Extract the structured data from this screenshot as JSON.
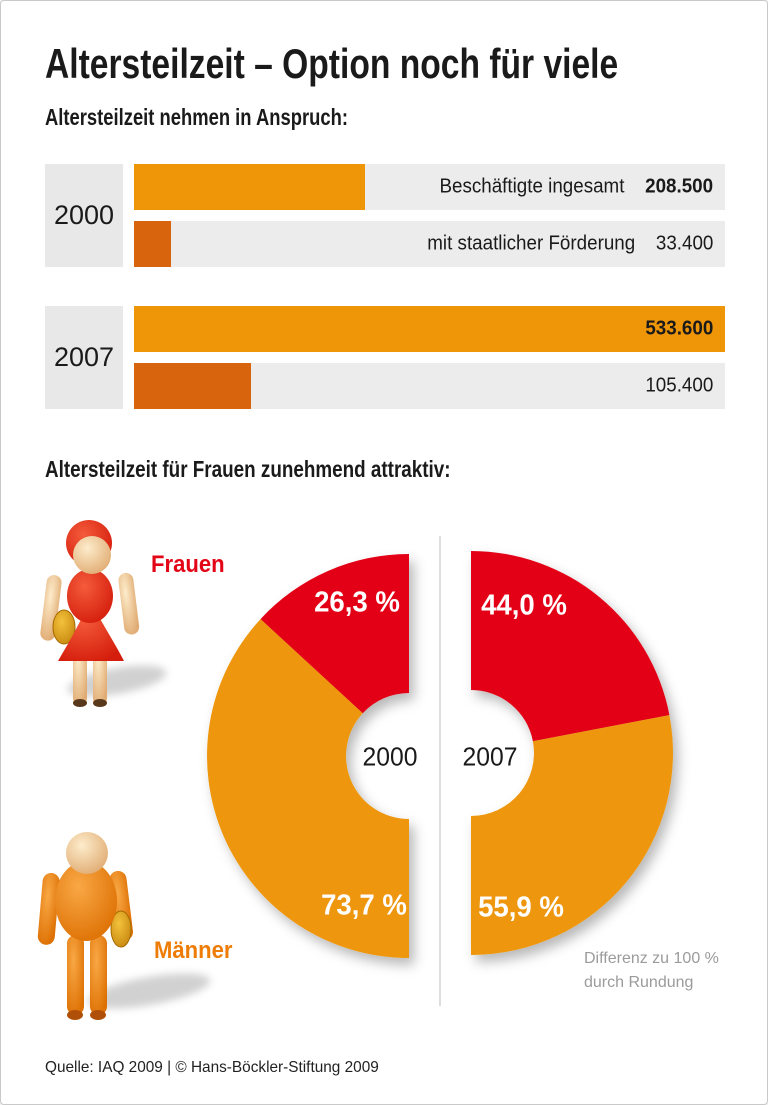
{
  "page": {
    "title": "Altersteilzeit – Option noch für viele",
    "source_line": "Quelle: IAQ 2009 | © Hans-Böckler-Stiftung 2009"
  },
  "theme": {
    "orange": "#ee9608",
    "dark_orange": "#d8650d",
    "red": "#e30617",
    "track_gray": "#ececec",
    "year_box_gray": "#e8e8e8",
    "footnote_gray": "#9b9b9b"
  },
  "bar_section": {
    "heading": "Altersteilzeit nehmen in Anspruch:",
    "groups": [
      {
        "year": "2000",
        "bars": [
          {
            "label": "Beschäftigte ingesamt",
            "value": "208.500"
          },
          {
            "label": "mit staatlicher Förderung",
            "value": "33.400"
          }
        ]
      },
      {
        "year": "2007",
        "bars": [
          {
            "label": "",
            "value": "533.600"
          },
          {
            "label": "",
            "value": "105.400"
          }
        ]
      }
    ]
  },
  "donut_section": {
    "heading": "Altersteilzeit für Frauen zunehmend attraktiv:",
    "legend": [
      {
        "label": "Frauen",
        "color": "#e30617"
      },
      {
        "label": "Männer",
        "color": "#ee9608"
      }
    ],
    "charts": [
      {
        "year": "2000",
        "frauen_pct": "26,3 %",
        "maenner_pct": "73,7 %"
      },
      {
        "year": "2007",
        "frauen_pct": "44,0 %",
        "maenner_pct": "55,9 %"
      }
    ],
    "footnote": "Differenz zu 100 % durch Rundung"
  },
  "chart_data": [
    {
      "type": "bar",
      "orientation": "horizontal",
      "title": "Altersteilzeit nehmen in Anspruch",
      "groups": [
        "2000",
        "2007"
      ],
      "series": [
        {
          "name": "Beschäftigte ingesamt",
          "values": [
            208500,
            533600
          ]
        },
        {
          "name": "mit staatlicher Förderung",
          "values": [
            33400,
            105400
          ]
        }
      ],
      "value_labels": [
        [
          "208.500",
          "533.600"
        ],
        [
          "33.400",
          "105.400"
        ]
      ],
      "xlim": [
        0,
        533600
      ],
      "grid": false,
      "legend_position": "inline-right"
    },
    {
      "type": "pie",
      "style": "half-donut-pair",
      "title": "Altersteilzeit für Frauen zunehmend attraktiv",
      "charts": [
        {
          "label": "2000",
          "slices": [
            {
              "name": "Frauen",
              "value_pct": 26.3
            },
            {
              "name": "Männer",
              "value_pct": 73.7
            }
          ]
        },
        {
          "label": "2007",
          "slices": [
            {
              "name": "Frauen",
              "value_pct": 44.0
            },
            {
              "name": "Männer",
              "value_pct": 55.9
            }
          ]
        }
      ],
      "note": "Differenz zu 100 % durch Rundung"
    }
  ]
}
